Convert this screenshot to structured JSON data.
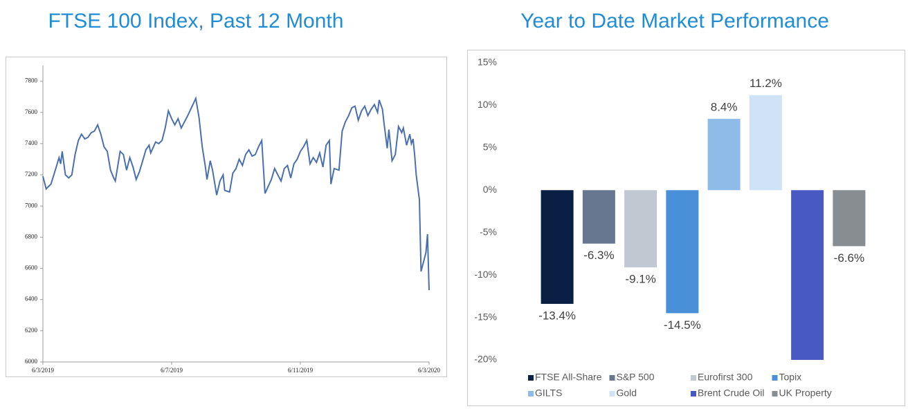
{
  "chart_data": [
    {
      "type": "line",
      "title": "FTSE 100 Index, Past 12 Month",
      "x": [
        0,
        0.1,
        0.25,
        0.4,
        0.5,
        0.55,
        0.6,
        0.7,
        0.8,
        0.9,
        1.0,
        1.1,
        1.2,
        1.3,
        1.4,
        1.5,
        1.6,
        1.7,
        1.8,
        1.9,
        2.0,
        2.1,
        2.2,
        2.25,
        2.4,
        2.5,
        2.6,
        2.7,
        2.8,
        2.9,
        3.0,
        3.1,
        3.2,
        3.3,
        3.35,
        3.5,
        3.6,
        3.7,
        3.8,
        3.9,
        4.0,
        4.1,
        4.2,
        4.3,
        4.4,
        4.5,
        4.75,
        4.85,
        4.95,
        5.05,
        5.1,
        5.2,
        5.27,
        5.4,
        5.5,
        5.6,
        5.65,
        5.8,
        5.9,
        6.0,
        6.1,
        6.2,
        6.3,
        6.4,
        6.5,
        6.6,
        6.7,
        6.8,
        6.9,
        7.1,
        7.2,
        7.3,
        7.4,
        7.5,
        7.6,
        7.7,
        7.8,
        7.9,
        8.0,
        8.1,
        8.2,
        8.3,
        8.4,
        8.5,
        8.6,
        8.7,
        8.8,
        8.9,
        8.95,
        9.05,
        9.2,
        9.3,
        9.4,
        9.5,
        9.6,
        9.7,
        9.8,
        9.9,
        10.0,
        10.1,
        10.2,
        10.3,
        10.4,
        10.45,
        10.55,
        10.6,
        10.7,
        10.75,
        10.85,
        10.95,
        11.05,
        11.15,
        11.2,
        11.3,
        11.4,
        11.45,
        11.5,
        11.55,
        11.6,
        11.7,
        11.75,
        11.8,
        11.9,
        11.95,
        12.0
      ],
      "series": [
        {
          "name": "FTSE 100",
          "color": "#4a6fae",
          "values": [
            7190,
            7110,
            7140,
            7240,
            7310,
            7270,
            7350,
            7200,
            7180,
            7200,
            7330,
            7420,
            7460,
            7430,
            7440,
            7470,
            7480,
            7520,
            7460,
            7380,
            7350,
            7230,
            7180,
            7160,
            7350,
            7330,
            7230,
            7310,
            7250,
            7170,
            7220,
            7290,
            7360,
            7390,
            7340,
            7410,
            7400,
            7420,
            7500,
            7610,
            7560,
            7520,
            7560,
            7500,
            7540,
            7580,
            7690,
            7570,
            7380,
            7250,
            7170,
            7290,
            7230,
            7070,
            7160,
            7200,
            7100,
            7090,
            7210,
            7240,
            7300,
            7260,
            7330,
            7360,
            7320,
            7330,
            7380,
            7420,
            7080,
            7170,
            7240,
            7200,
            7160,
            7240,
            7260,
            7180,
            7270,
            7300,
            7350,
            7380,
            7420,
            7270,
            7310,
            7280,
            7340,
            7250,
            7390,
            7420,
            7140,
            7240,
            7230,
            7480,
            7540,
            7580,
            7630,
            7640,
            7550,
            7610,
            7640,
            7580,
            7620,
            7650,
            7600,
            7680,
            7620,
            7530,
            7370,
            7490,
            7290,
            7330,
            7510,
            7470,
            7500,
            7390,
            7460,
            7400,
            7430,
            7330,
            7200,
            7040,
            6580,
            6620,
            6700,
            6820,
            6460
          ]
        }
      ],
      "xlim": [
        0,
        12
      ],
      "xticks": [
        {
          "value": 0,
          "label": "6/3/2019"
        },
        {
          "value": 4,
          "label": "6/7/2019"
        },
        {
          "value": 8,
          "label": "6/11/2019"
        },
        {
          "value": 12,
          "label": "6/3/2020"
        }
      ],
      "ylim": [
        6000,
        7900
      ],
      "yticks": [
        6000,
        6200,
        6400,
        6600,
        6800,
        7000,
        7200,
        7400,
        7600,
        7800
      ],
      "grid": false
    },
    {
      "type": "bar",
      "title": "Year to Date Market Performance",
      "categories": [
        "FTSE All-Share",
        "S&P 500",
        "Eurofirst 300",
        "Topix",
        "GILTS",
        "Gold",
        "Brent Crude Oil",
        "UK Property"
      ],
      "values": [
        -13.4,
        -6.3,
        -9.1,
        -14.5,
        8.4,
        11.2,
        -20,
        -6.6
      ],
      "value_labels": [
        "-13.4%",
        "-6.3%",
        "-9.1%",
        "-14.5%",
        "8.4%",
        "11.2%",
        null,
        "-6.6%"
      ],
      "colors": [
        "#0a1f44",
        "#66778f",
        "#c2c8d2",
        "#4a90d9",
        "#8fbbe8",
        "#cfe2f6",
        "#4859c4",
        "#878d90"
      ],
      "ylim": [
        -20,
        15
      ],
      "yticks": [
        {
          "value": -20,
          "label": "-20%"
        },
        {
          "value": -15,
          "label": "-15%"
        },
        {
          "value": -10,
          "label": "-10%"
        },
        {
          "value": -5,
          "label": "-5%"
        },
        {
          "value": 0,
          "label": "0%"
        },
        {
          "value": 5,
          "label": "5%"
        },
        {
          "value": 10,
          "label": "10%"
        },
        {
          "value": 15,
          "label": "15%"
        }
      ],
      "grid": false,
      "legend": "bottom"
    }
  ]
}
